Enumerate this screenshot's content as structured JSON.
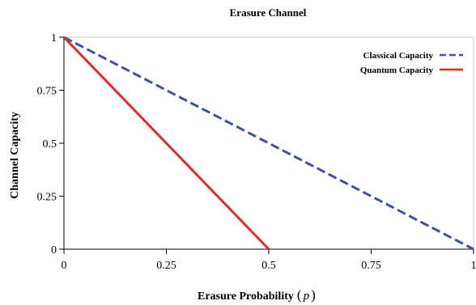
{
  "chart_data": {
    "type": "line",
    "title": "Erasure Channel",
    "xlabel": "Erasure Probability",
    "xlabel_var": "p",
    "ylabel": "Channel Capacity",
    "xlim": [
      0,
      1
    ],
    "ylim": [
      0,
      1
    ],
    "xticks": [
      0,
      0.25,
      0.5,
      0.75,
      1
    ],
    "xtick_labels": [
      "0",
      "0.25",
      "0.5",
      "0.75",
      "1"
    ],
    "yticks": [
      0,
      0.25,
      0.5,
      0.75,
      1
    ],
    "ytick_labels": [
      "0",
      "0.25",
      "0.5",
      "0.75",
      "1"
    ],
    "grid": false,
    "legend_position": "top-right",
    "series": [
      {
        "name": "Classical Capacity",
        "x": [
          0,
          1
        ],
        "y": [
          1,
          0
        ],
        "color": "#3f51a3",
        "style": "dashed"
      },
      {
        "name": "Quantum Capacity",
        "x": [
          0,
          0.5
        ],
        "y": [
          1,
          0
        ],
        "color": "#e02a2a",
        "style": "solid"
      }
    ]
  }
}
